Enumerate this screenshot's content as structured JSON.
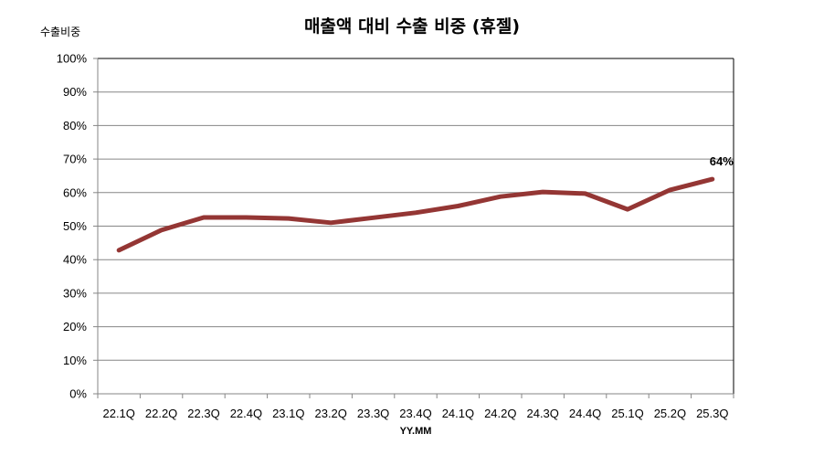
{
  "chart_data": {
    "type": "line",
    "title": "매출액 대비 수출 비중 (휴젤)",
    "xlabel": "YY.MM",
    "ylabel": "수출비중",
    "ylim": [
      0,
      100
    ],
    "yticks": [
      "0%",
      "10%",
      "20%",
      "30%",
      "40%",
      "50%",
      "60%",
      "70%",
      "80%",
      "90%",
      "100%"
    ],
    "grid": true,
    "legend": null,
    "categories": [
      "22.1Q",
      "22.2Q",
      "22.3Q",
      "22.4Q",
      "23.1Q",
      "23.2Q",
      "23.3Q",
      "23.4Q",
      "24.1Q",
      "24.2Q",
      "24.3Q",
      "24.4Q",
      "25.1Q",
      "25.2Q",
      "25.3Q"
    ],
    "series": [
      {
        "name": "수출비중",
        "color": "#943634",
        "values": [
          42.8,
          48.8,
          52.6,
          52.6,
          52.3,
          51.0,
          52.5,
          54.0,
          56.0,
          58.8,
          60.2,
          59.7,
          55.0,
          60.8,
          64.0
        ]
      }
    ],
    "annotations": [
      {
        "category": "25.3Q",
        "text": "64%"
      }
    ]
  }
}
